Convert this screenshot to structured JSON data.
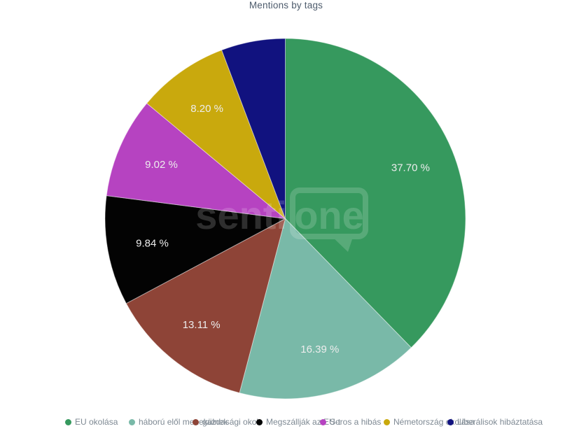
{
  "title": "Mentions by tags",
  "chart_data": {
    "type": "pie",
    "title": "Mentions by tags",
    "start_angle_deg": 0,
    "direction": "clockwise",
    "legend_position": "bottom",
    "slices": [
      {
        "label": "EU okolása",
        "value": 37.7,
        "pct_label": "37.70 %",
        "color": "#36995e",
        "label_visible": true
      },
      {
        "label": "háború elől menekülnek",
        "value": 16.39,
        "pct_label": "16.39 %",
        "color": "#79b9a8",
        "label_visible": true
      },
      {
        "label": "gazdasági okok",
        "value": 13.11,
        "pct_label": "13.11 %",
        "color": "#8e4437",
        "label_visible": true
      },
      {
        "label": "Megszállják az EU-t",
        "value": 9.84,
        "pct_label": "9.84 %",
        "color": "#030303",
        "label_visible": true
      },
      {
        "label": "Soros a hibás",
        "value": 9.02,
        "pct_label": "9.02 %",
        "color": "#b643c1",
        "label_visible": true
      },
      {
        "label": "Németország okolása",
        "value": 8.2,
        "pct_label": "8.20 %",
        "color": "#c9a90d",
        "label_visible": true
      },
      {
        "label": "Liberálisok hibáztatása",
        "value": 5.74,
        "pct_label": "",
        "color": "#11127f",
        "label_visible": false
      }
    ]
  },
  "watermark": {
    "prefix": "senti",
    "bubble_text": "one"
  },
  "colors": {
    "title_text": "#4d5b6c",
    "legend_text": "#7e8993",
    "slice_label_text": "#ededed",
    "slice_border": "rgba(255,255,255,0.45)",
    "background": "#ffffff"
  }
}
